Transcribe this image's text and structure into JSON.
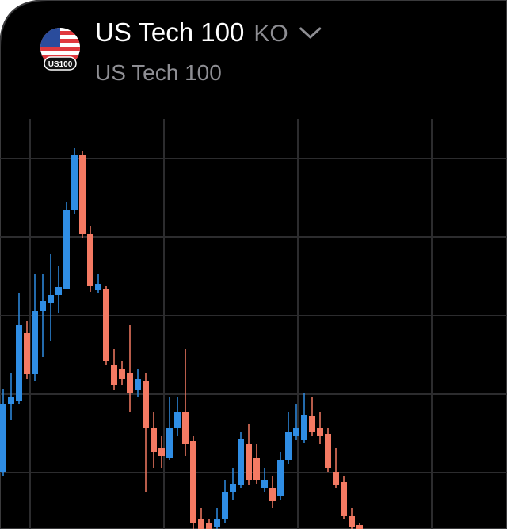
{
  "header": {
    "title": "US Tech 100",
    "exchange": "KO",
    "subtitle": "US Tech 100",
    "badge": "US100"
  },
  "chart_data": {
    "type": "candlestick",
    "up_color": "#2f8de4",
    "down_color": "#f47a63",
    "ylim": [
      0,
      517
    ],
    "open": [
      72,
      157,
      162,
      247,
      195,
      275,
      285,
      295,
      302,
      402,
      472,
      372,
      301,
      302,
      207,
      202,
      197,
      175,
      187,
      127,
      102,
      89,
      127,
      147,
      111,
      12,
      7,
      3,
      12,
      47,
      55,
      107,
      89,
      52,
      52,
      42,
      87,
      117,
      112,
      142,
      127,
      120,
      72,
      59,
      17,
      5
    ],
    "high": [
      177,
      197,
      297,
      262,
      322,
      322,
      347,
      332,
      412,
      481,
      477,
      382,
      322,
      307,
      227,
      212,
      257,
      202,
      197,
      147,
      117,
      167,
      167,
      227,
      117,
      27,
      12,
      27,
      62,
      77,
      122,
      132,
      107,
      77,
      67,
      97,
      147,
      157,
      171,
      167,
      147,
      127,
      102,
      67,
      27,
      7
    ],
    "low": [
      67,
      137,
      157,
      189,
      187,
      217,
      237,
      272,
      302,
      397,
      367,
      299,
      297,
      207,
      175,
      182,
      147,
      167,
      47,
      77,
      77,
      87,
      117,
      92,
      0,
      0,
      0,
      0,
      7,
      37,
      52,
      55,
      57,
      47,
      27,
      37,
      82,
      112,
      109,
      117,
      107,
      72,
      52,
      12,
      0,
      0
    ],
    "close": [
      157,
      167,
      257,
      195,
      275,
      287,
      295,
      305,
      402,
      472,
      372,
      307,
      309,
      212,
      182,
      189,
      172,
      189,
      127,
      97,
      92,
      127,
      147,
      107,
      7,
      0,
      0,
      12,
      47,
      57,
      114,
      62,
      62,
      62,
      35,
      87,
      122,
      127,
      144,
      122,
      117,
      77,
      55,
      17,
      2,
      0
    ]
  }
}
